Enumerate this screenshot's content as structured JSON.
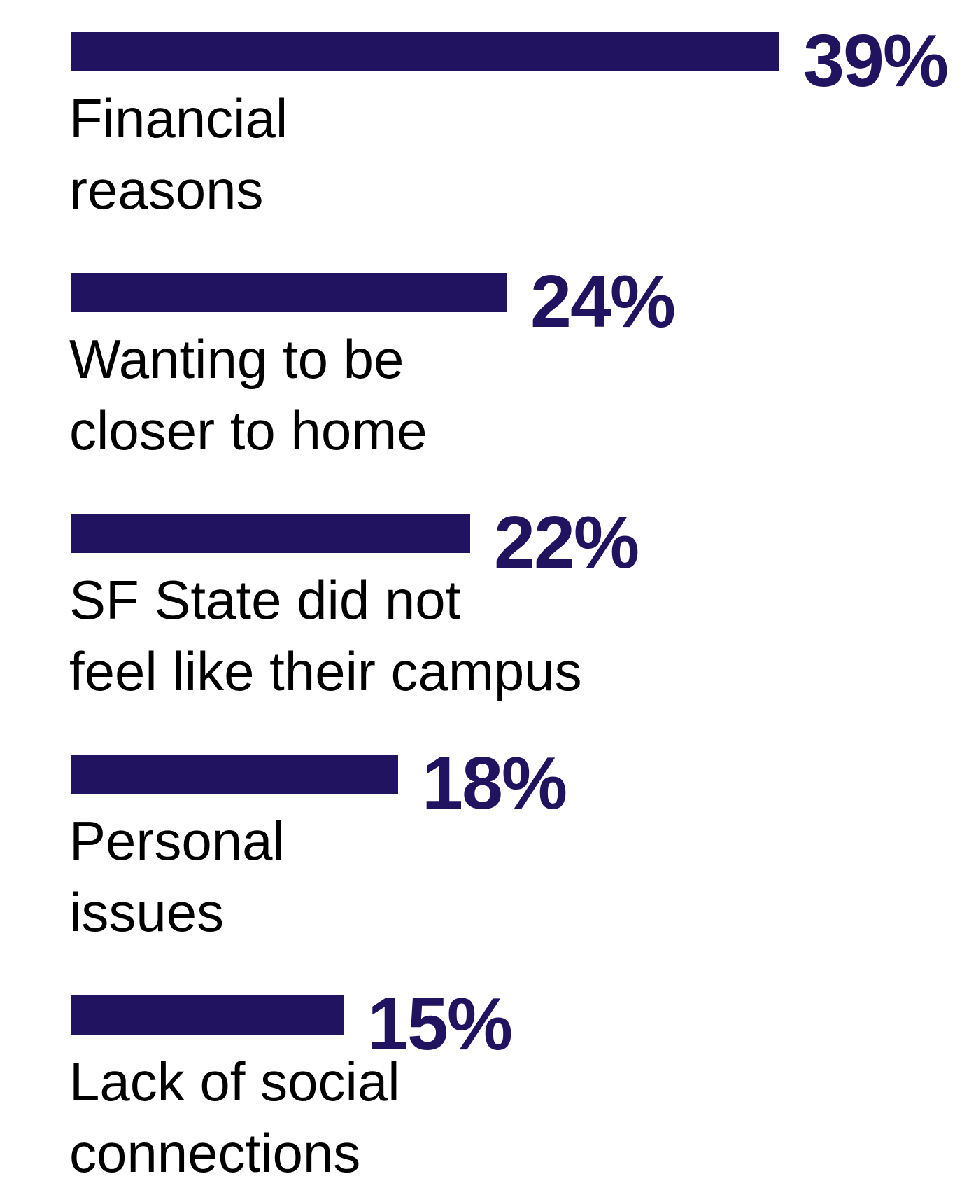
{
  "colors": {
    "bar": "#221361",
    "value_text": "#221361",
    "label_text": "#000000",
    "background": "#ffffff"
  },
  "chart_data": {
    "type": "bar",
    "orientation": "horizontal",
    "title": "",
    "xlabel": "",
    "ylabel": "",
    "xlim": [
      0,
      39
    ],
    "grid": false,
    "legend": "none",
    "categories": [
      [
        "Financial",
        "reasons"
      ],
      [
        "Wanting to be",
        "closer to home"
      ],
      [
        "SF State did not",
        "feel like their campus"
      ],
      [
        "Personal",
        "issues"
      ],
      [
        "Lack of social",
        "connections"
      ]
    ],
    "values": [
      39,
      24,
      22,
      18,
      15
    ],
    "value_labels": [
      "39%",
      "24%",
      "22%",
      "18%",
      "15%"
    ]
  }
}
